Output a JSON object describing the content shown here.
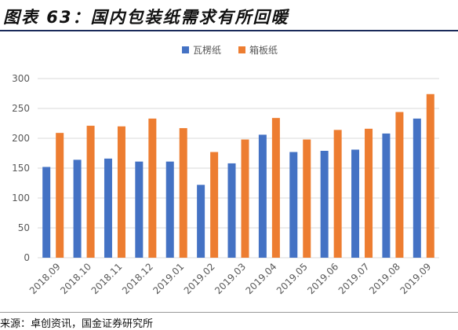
{
  "figure": {
    "title": "图表 63：国内包装纸需求有所回暖",
    "source": "来源：卓创资讯，国金证券研究所"
  },
  "colors": {
    "series1": "#4472c4",
    "series2": "#ed7d31",
    "grid": "#d9d9d9",
    "axis_text": "#595959"
  },
  "chart_data": {
    "type": "bar",
    "title": "",
    "xlabel": "",
    "ylabel": "",
    "ylim": [
      0,
      300
    ],
    "yticks": [
      0,
      50,
      100,
      150,
      200,
      250,
      300
    ],
    "grid": true,
    "legend_position": "top-center",
    "categories": [
      "2018.09",
      "2018.10",
      "2018.11",
      "2018.12",
      "2019.01",
      "2019.02",
      "2019.03",
      "2019.04",
      "2019.05",
      "2019.06",
      "2019.07",
      "2019.08",
      "2019.09"
    ],
    "series": [
      {
        "name": "瓦楞纸",
        "color": "#4472c4",
        "values": [
          152,
          164,
          166,
          161,
          161,
          122,
          158,
          206,
          177,
          179,
          181,
          208,
          233
        ]
      },
      {
        "name": "箱板纸",
        "color": "#ed7d31",
        "values": [
          209,
          221,
          220,
          233,
          217,
          177,
          198,
          234,
          198,
          214,
          216,
          244,
          274
        ]
      }
    ]
  }
}
